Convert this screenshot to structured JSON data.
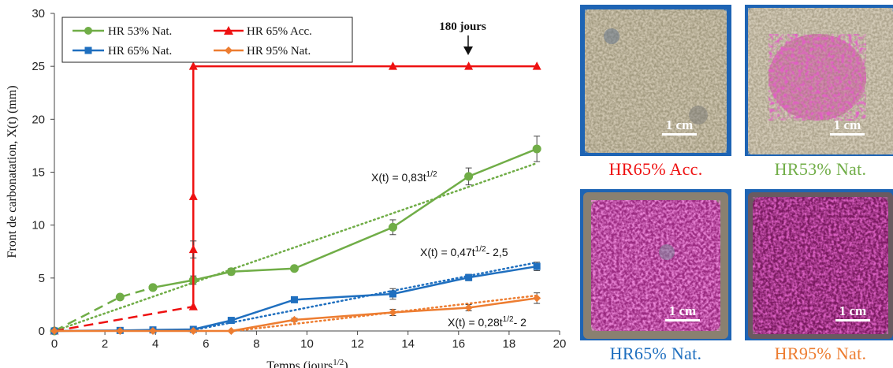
{
  "colors": {
    "green": "#70ad47",
    "red": "#ee1111",
    "blue": "#1f6fbf",
    "orange": "#ed7d31",
    "photo_bg": "#1e64b4"
  },
  "chart_data": {
    "type": "line",
    "xlabel": "Temps (jours1/2)",
    "ylabel": "Front de carbonatation, X(t) (mm)",
    "xlim": [
      0,
      20
    ],
    "ylim": [
      0,
      30
    ],
    "x_ticks": [
      0,
      2,
      4,
      6,
      8,
      10,
      12,
      14,
      16,
      18,
      20
    ],
    "y_ticks": [
      0,
      5,
      10,
      15,
      20,
      25,
      30
    ],
    "grid": false,
    "legend_placement": "top-left",
    "series": [
      {
        "name": "HR 53% Nat.",
        "color_key": "green",
        "marker": "circle",
        "dashed_segment": [
          [
            0,
            0
          ],
          [
            2.6,
            3.2
          ],
          [
            3.9,
            4.1
          ]
        ],
        "x": [
          3.9,
          5.5,
          7.0,
          9.5,
          13.4,
          16.4,
          19.1
        ],
        "y": [
          4.1,
          4.8,
          5.6,
          5.9,
          9.8,
          14.6,
          17.2
        ],
        "error": [
          0.2,
          0.4,
          0.3,
          0.2,
          0.7,
          0.8,
          1.2
        ]
      },
      {
        "name": "HR 65% Acc.",
        "color_key": "red",
        "marker": "triangle",
        "dashed_segment": [
          [
            0,
            0
          ],
          [
            5.5,
            2.3
          ]
        ],
        "x": [
          5.5,
          5.5,
          5.5,
          5.5,
          13.4,
          16.4,
          19.1
        ],
        "y": [
          2.3,
          7.7,
          12.7,
          25,
          25,
          25,
          25
        ],
        "error": [
          0,
          0.8,
          0,
          0,
          0,
          0,
          0
        ]
      },
      {
        "name": "HR 65% Nat.",
        "color_key": "blue",
        "marker": "square",
        "x": [
          0,
          2.6,
          3.9,
          5.5,
          7.0,
          9.5,
          13.4,
          16.4,
          19.1
        ],
        "y": [
          0,
          0.05,
          0.1,
          0.15,
          1.0,
          2.95,
          3.5,
          5.05,
          6.1
        ],
        "error": [
          0,
          0,
          0,
          0,
          0.2,
          0.2,
          0.5,
          0.3,
          0.4
        ]
      },
      {
        "name": "HR 95% Nat.",
        "color_key": "orange",
        "marker": "diamond",
        "x": [
          0,
          2.6,
          3.9,
          5.5,
          7.0,
          9.5,
          13.4,
          16.4,
          19.1
        ],
        "y": [
          0,
          0,
          0,
          0,
          0,
          1.05,
          1.75,
          2.2,
          3.1
        ],
        "error": [
          0,
          0,
          0,
          0,
          0,
          0.15,
          0.3,
          0.3,
          0.5
        ]
      }
    ],
    "trendlines": [
      {
        "color_key": "green",
        "slope": 0.83,
        "intercept": 0,
        "x_range": [
          0,
          19.1
        ]
      },
      {
        "color_key": "blue",
        "slope": 0.47,
        "intercept": -2.5,
        "x_range": [
          5.3,
          19.1
        ]
      },
      {
        "color_key": "orange",
        "slope": 0.28,
        "intercept": -2,
        "x_range": [
          7.1,
          19.1
        ]
      }
    ],
    "annotations": [
      {
        "text": "X(t) = 0,83t1/2"
      },
      {
        "text": "X(t) = 0,47t1/2- 2,5"
      },
      {
        "text": "X(t) = 0,28t1/2- 2"
      },
      {
        "text": "180 jours",
        "x": 16.4
      }
    ]
  },
  "photos": [
    {
      "label": "HR65% Acc.",
      "scale": "1 cm",
      "color_key": "red"
    },
    {
      "label": "HR53% Nat.",
      "scale": "1 cm",
      "color_key": "green"
    },
    {
      "label": "HR65% Nat.",
      "scale": "1 cm",
      "color_key": "blue"
    },
    {
      "label": "HR95% Nat.",
      "scale": "1 cm",
      "color_key": "orange"
    }
  ],
  "eq_parts": {
    "green": {
      "pre": "X(t) = 0,83t",
      "sup": "1/2",
      "post": ""
    },
    "blue": {
      "pre": "X(t) = 0,47t",
      "sup": "1/2",
      "post": "- 2,5"
    },
    "orange": {
      "pre": "X(t) = 0,28t",
      "sup": "1/2",
      "post": "- 2"
    }
  },
  "xlabel_parts": {
    "pre": "Temps (jours",
    "sup": "1/2",
    "post": ")"
  }
}
